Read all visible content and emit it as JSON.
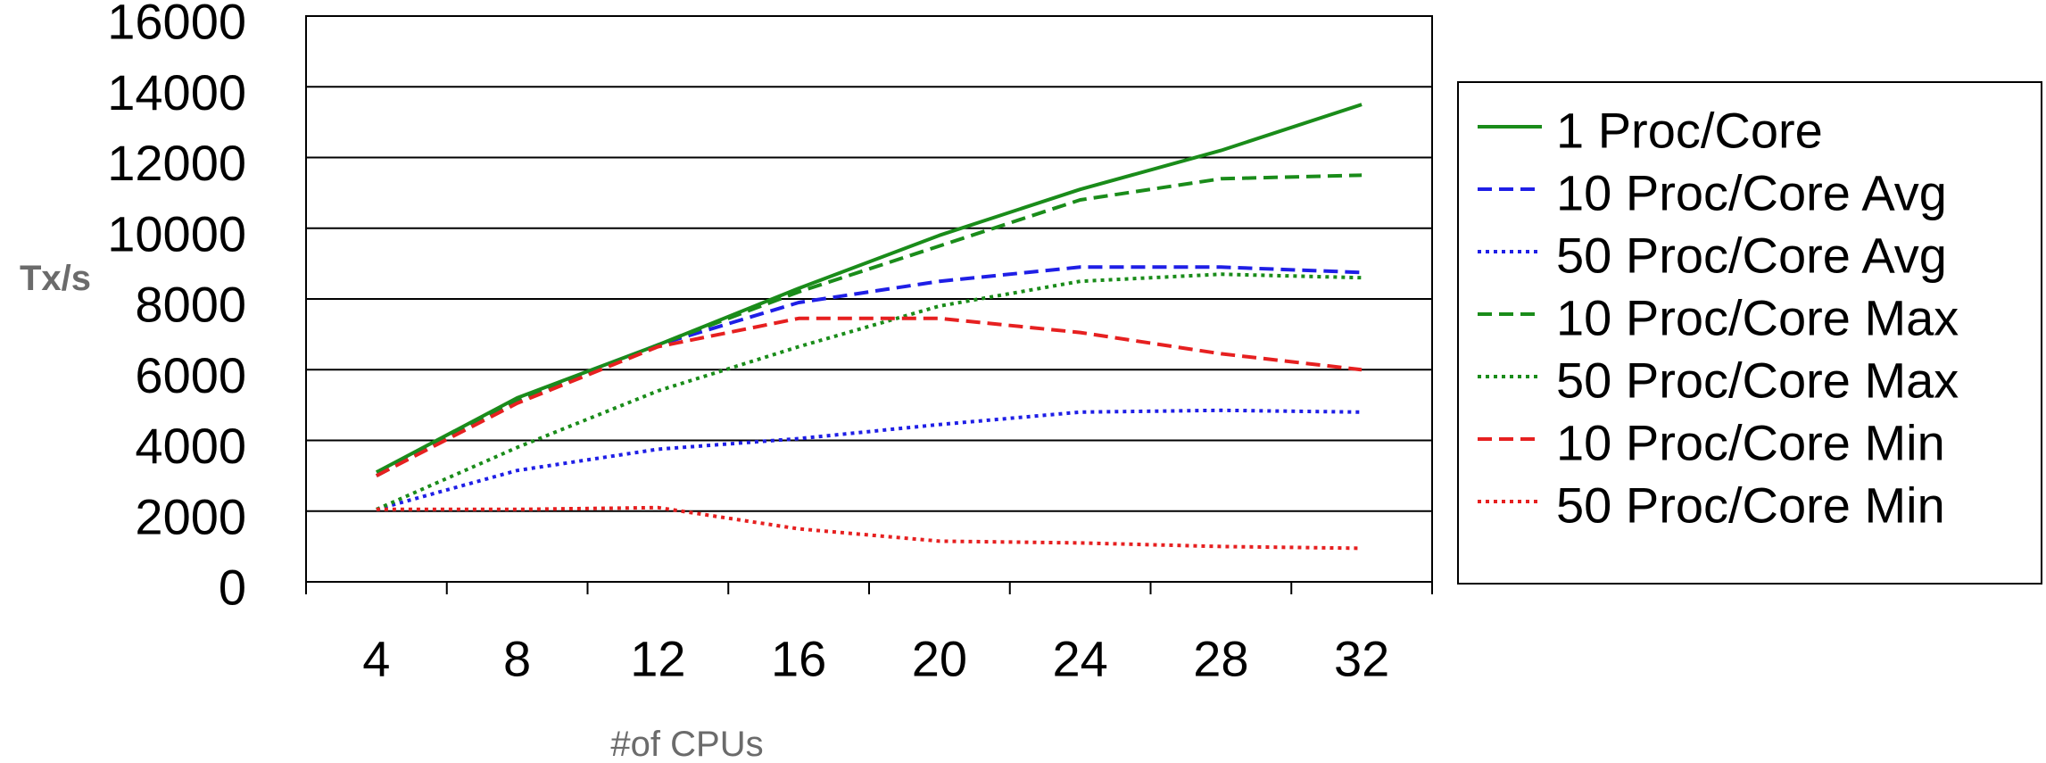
{
  "chart_data": {
    "type": "line",
    "title": "",
    "xlabel": "#of CPUs",
    "ylabel": "Tx/s",
    "x": [
      4,
      8,
      12,
      16,
      20,
      24,
      28,
      32
    ],
    "x_tick_labels": [
      "4",
      "8",
      "12",
      "16",
      "20",
      "24",
      "28",
      "32"
    ],
    "y_tick_labels": [
      "0",
      "2000",
      "4000",
      "6000",
      "8000",
      "10000",
      "12000",
      "14000",
      "16000"
    ],
    "ylim": [
      0,
      16000
    ],
    "grid": "horizontal",
    "legend_position": "right",
    "series": [
      {
        "name": "1 Proc/Core",
        "color": "#1a8c1a",
        "dash": "solid",
        "values": [
          3100,
          5200,
          6700,
          8300,
          9800,
          11100,
          12200,
          13500
        ]
      },
      {
        "name": "10 Proc/Core Avg",
        "color": "#1f1fe6",
        "dash": "dashed",
        "values": [
          3000,
          5100,
          6700,
          7900,
          8500,
          8900,
          8900,
          8750
        ]
      },
      {
        "name": "50 Proc/Core Avg",
        "color": "#1f1fe6",
        "dash": "dotted",
        "values": [
          2050,
          3150,
          3750,
          4050,
          4450,
          4800,
          4850,
          4800
        ]
      },
      {
        "name": "10 Proc/Core Max",
        "color": "#1a8c1a",
        "dash": "dashed",
        "values": [
          3000,
          5100,
          6700,
          8200,
          9500,
          10800,
          11400,
          11500
        ]
      },
      {
        "name": "50 Proc/Core Max",
        "color": "#1a8c1a",
        "dash": "dotted",
        "values": [
          2050,
          3800,
          5400,
          6650,
          7800,
          8500,
          8700,
          8600
        ]
      },
      {
        "name": "10 Proc/Core Min",
        "color": "#e62020",
        "dash": "dashed",
        "values": [
          3000,
          5050,
          6650,
          7450,
          7450,
          7050,
          6450,
          6000
        ]
      },
      {
        "name": "50 Proc/Core Min",
        "color": "#e62020",
        "dash": "dotted",
        "values": [
          2050,
          2050,
          2100,
          1500,
          1150,
          1100,
          1000,
          950
        ]
      }
    ]
  }
}
